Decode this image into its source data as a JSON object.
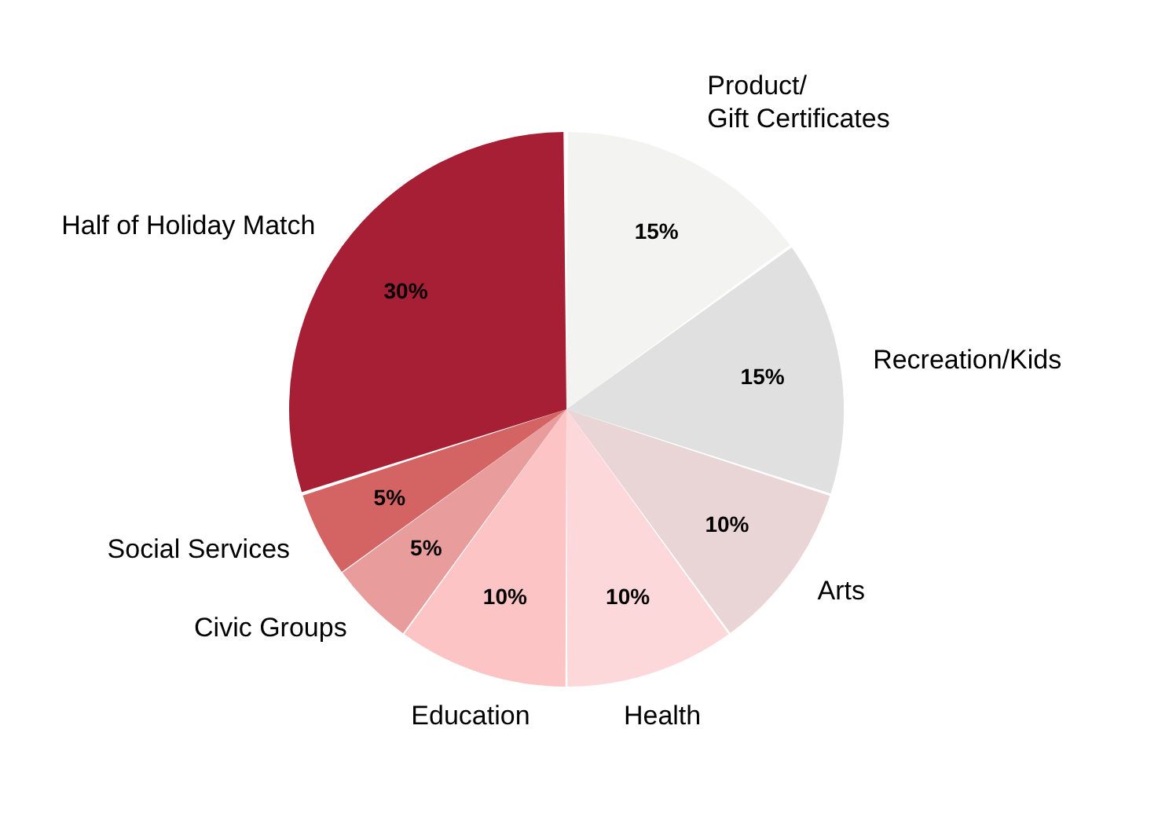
{
  "chart_data": {
    "type": "pie",
    "categories": [
      "Product/\nGift Certificates",
      "Recreation/Kids",
      "Arts",
      "Health",
      "Education",
      "Civic Groups",
      "Social Services",
      "Half of Holiday Match"
    ],
    "values": [
      15,
      15,
      10,
      10,
      10,
      5,
      5,
      30
    ],
    "colors": [
      "#f3f4f2",
      "#e0e0e0",
      "#e9d4d6",
      "#fdd8da",
      "#fcc4c5",
      "#e89c9c",
      "#d46464",
      "#a61f35"
    ],
    "value_labels": [
      "15%",
      "15%",
      "10%",
      "10%",
      "10%",
      "5%",
      "5%",
      "30%"
    ],
    "legend": false
  }
}
